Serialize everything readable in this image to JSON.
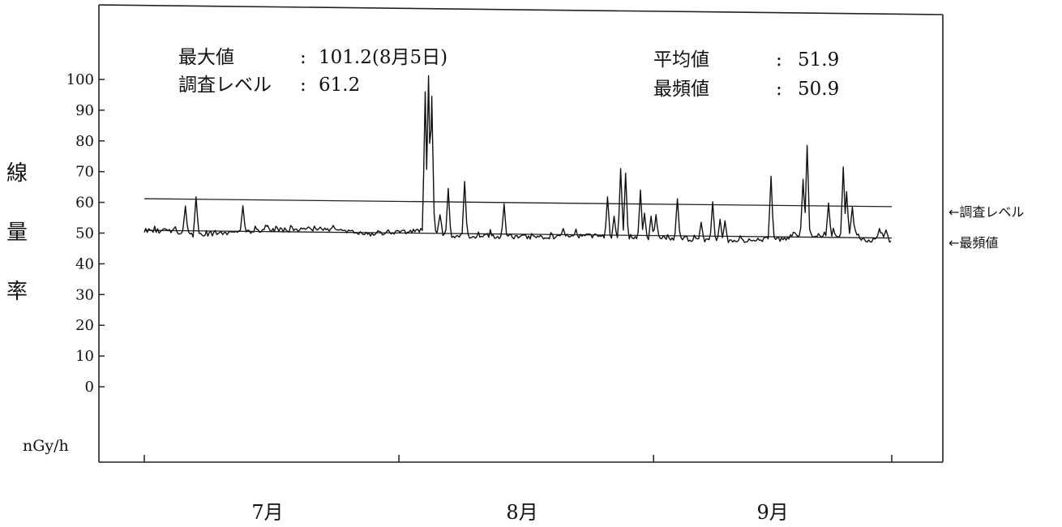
{
  "stats": {
    "max_label": "最大値",
    "max_value": "101.2(8月5日)",
    "survey_label": "調査レベル",
    "survey_value": "61.2",
    "avg_label": "平均値",
    "avg_value": "51.9",
    "mode_label": "最頻値",
    "mode_value": "50.9",
    "colon": ":"
  },
  "y_axis_label": [
    "線",
    "量",
    "率"
  ],
  "unit": "nGy/h",
  "ref_lines": {
    "survey_label": "←調査レベル",
    "mode_label": "←最頻値"
  },
  "colors": {
    "line": "#111111",
    "axis": "#222222"
  },
  "chart_data": {
    "type": "line",
    "title": "",
    "ylabel": "線量率",
    "yunit": "nGy/h",
    "ylim": [
      0,
      100
    ],
    "yticks": [
      0,
      10,
      20,
      30,
      40,
      50,
      60,
      70,
      80,
      90,
      100
    ],
    "xlabels": [
      "7月",
      "8月",
      "9月"
    ],
    "x_range_days": [
      1,
      92
    ],
    "grid": false,
    "reference_lines": [
      {
        "name": "調査レベル",
        "y_start": 61.2,
        "y_end": 58.6
      },
      {
        "name": "最頻値",
        "y_start": 50.9,
        "y_end": 48.4
      }
    ],
    "baseline": [
      [
        1,
        51.0
      ],
      [
        5,
        50.5
      ],
      [
        7,
        49.5
      ],
      [
        12,
        50.3
      ],
      [
        17,
        51.0
      ],
      [
        22,
        51.3
      ],
      [
        26,
        50.2
      ],
      [
        29,
        49.6
      ],
      [
        33,
        50.5
      ],
      [
        35,
        51.2
      ],
      [
        37,
        50.5
      ],
      [
        38,
        49.1
      ],
      [
        43,
        48.9
      ],
      [
        48,
        48.7
      ],
      [
        52,
        48.9
      ],
      [
        56,
        49.2
      ],
      [
        58,
        48.4
      ],
      [
        62,
        48.2
      ],
      [
        65,
        48.5
      ],
      [
        70,
        47.6
      ],
      [
        75,
        47.7
      ],
      [
        79,
        48.0
      ],
      [
        80,
        49.6
      ],
      [
        84,
        49.1
      ],
      [
        86,
        49.5
      ],
      [
        87,
        49.6
      ],
      [
        88,
        48.8
      ],
      [
        89,
        47.2
      ],
      [
        90,
        47.5
      ],
      [
        91,
        49.0
      ],
      [
        92,
        47.4
      ]
    ],
    "peaks": [
      [
        6,
        58.8
      ],
      [
        7.3,
        61.8
      ],
      [
        13,
        58.9
      ],
      [
        16,
        52.5
      ],
      [
        21,
        52.0
      ],
      [
        24,
        52.5
      ],
      [
        35.2,
        96.0
      ],
      [
        35.6,
        101.2
      ],
      [
        36,
        94.5
      ],
      [
        37,
        56.0
      ],
      [
        38,
        64.5
      ],
      [
        40,
        66.8
      ],
      [
        44.8,
        59.5
      ],
      [
        52,
        51.5
      ],
      [
        57.4,
        61.8
      ],
      [
        58.2,
        55.5
      ],
      [
        59,
        71.0
      ],
      [
        59.6,
        69.5
      ],
      [
        61.4,
        64.0
      ],
      [
        61.9,
        56.5
      ],
      [
        62.7,
        55.5
      ],
      [
        63.3,
        56.0
      ],
      [
        65.9,
        61.2
      ],
      [
        68.8,
        53.5
      ],
      [
        70.2,
        60.2
      ],
      [
        71.1,
        54.5
      ],
      [
        71.7,
        54.0
      ],
      [
        77.3,
        68.5
      ],
      [
        81.2,
        67.5
      ],
      [
        81.7,
        78.5
      ],
      [
        84.3,
        59.8
      ],
      [
        86.1,
        71.5
      ],
      [
        86.5,
        63.5
      ],
      [
        87.2,
        58.5
      ],
      [
        90.5,
        51.5
      ],
      [
        91.3,
        51.0
      ]
    ]
  }
}
